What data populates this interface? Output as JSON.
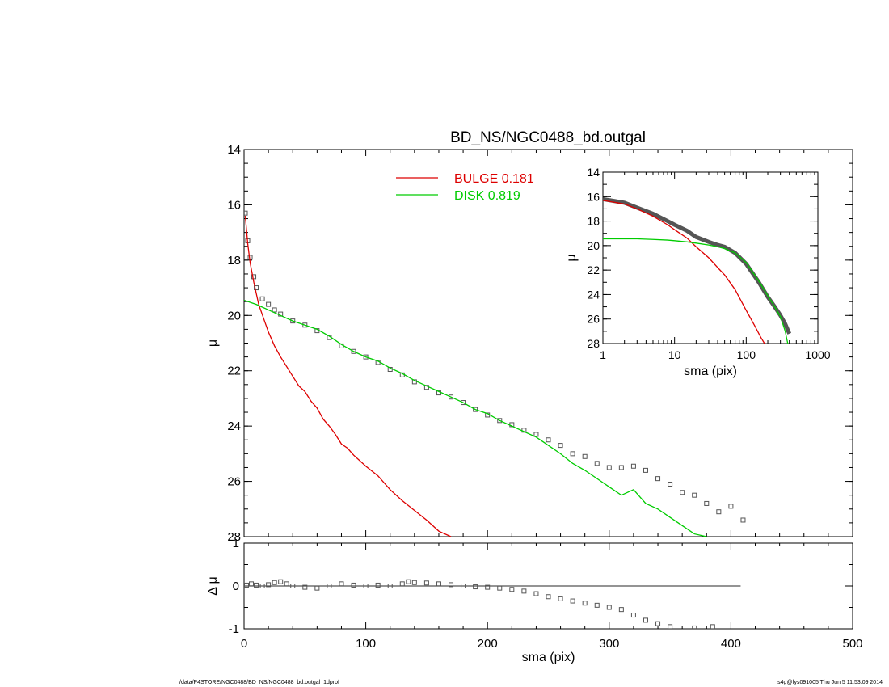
{
  "chart_data": [
    {
      "type": "scatter",
      "panel": "main-profile",
      "title": "BD_NS/NGC0488_bd.outgal",
      "xlabel": "",
      "ylabel": "μ",
      "xlim": [
        0,
        500
      ],
      "ylim": [
        28,
        14
      ],
      "x_ticks": [
        "0",
        "100",
        "200",
        "300",
        "400",
        "500"
      ],
      "y_ticks": [
        "14",
        "16",
        "18",
        "20",
        "22",
        "24",
        "26",
        "28"
      ],
      "legend": [
        {
          "name": "BULGE",
          "value": "0.181",
          "color": "#dd0000"
        },
        {
          "name": "DISK",
          "value": "0.819",
          "color": "#00cc00"
        }
      ],
      "legend_position": "top-center",
      "series": [
        {
          "name": "data",
          "style": "open-squares",
          "color": "#555555",
          "x": [
            1,
            3,
            5,
            8,
            10,
            15,
            20,
            25,
            30,
            40,
            50,
            60,
            70,
            80,
            90,
            100,
            110,
            120,
            130,
            140,
            150,
            160,
            170,
            180,
            190,
            200,
            210,
            220,
            230,
            240,
            250,
            260,
            270,
            280,
            290,
            300,
            310,
            320,
            330,
            340,
            350,
            360,
            370,
            380,
            390,
            400,
            410
          ],
          "y": [
            16.3,
            17.3,
            17.9,
            18.6,
            19.0,
            19.4,
            19.6,
            19.8,
            19.95,
            20.2,
            20.35,
            20.55,
            20.8,
            21.1,
            21.3,
            21.5,
            21.7,
            21.95,
            22.15,
            22.4,
            22.6,
            22.8,
            22.95,
            23.15,
            23.4,
            23.6,
            23.8,
            23.95,
            24.15,
            24.3,
            24.5,
            24.7,
            25.0,
            25.1,
            25.35,
            25.5,
            25.5,
            25.45,
            25.6,
            25.9,
            26.1,
            26.4,
            26.5,
            26.8,
            27.1,
            26.9,
            27.4
          ]
        },
        {
          "name": "BULGE",
          "style": "line",
          "color": "#dd0000",
          "x": [
            1,
            3,
            5,
            8,
            12,
            16,
            20,
            25,
            30,
            35,
            40,
            45,
            50,
            55,
            60,
            65,
            70,
            75,
            80,
            85,
            90,
            95,
            100,
            110,
            120,
            130,
            140,
            150,
            160,
            170
          ],
          "y": [
            16.4,
            17.4,
            18.1,
            18.8,
            19.6,
            20.1,
            20.6,
            21.1,
            21.5,
            21.85,
            22.2,
            22.55,
            22.75,
            23.1,
            23.35,
            23.75,
            24.0,
            24.3,
            24.65,
            24.8,
            25.05,
            25.25,
            25.45,
            25.8,
            26.3,
            26.7,
            27.05,
            27.4,
            27.8,
            28.0
          ]
        },
        {
          "name": "DISK",
          "style": "line",
          "color": "#00cc00",
          "x": [
            0,
            10,
            20,
            30,
            40,
            50,
            60,
            70,
            80,
            90,
            100,
            110,
            120,
            130,
            140,
            150,
            160,
            170,
            180,
            190,
            200,
            210,
            220,
            230,
            240,
            250,
            260,
            270,
            280,
            290,
            300,
            310,
            320,
            330,
            340,
            350,
            360,
            370,
            380
          ],
          "y": [
            19.45,
            19.6,
            19.8,
            20.0,
            20.2,
            20.35,
            20.5,
            20.75,
            21.05,
            21.3,
            21.5,
            21.65,
            21.9,
            22.1,
            22.35,
            22.55,
            22.75,
            22.95,
            23.15,
            23.4,
            23.55,
            23.8,
            24.0,
            24.2,
            24.4,
            24.7,
            25.0,
            25.35,
            25.6,
            25.9,
            26.2,
            26.5,
            26.3,
            26.8,
            27.0,
            27.3,
            27.6,
            27.9,
            28.0
          ]
        }
      ]
    },
    {
      "type": "scatter",
      "panel": "residual",
      "xlabel": "sma (pix)",
      "ylabel": "Δ μ",
      "xlim": [
        0,
        500
      ],
      "ylim": [
        -1,
        1
      ],
      "x_ticks": [
        "0",
        "100",
        "200",
        "300",
        "400",
        "500"
      ],
      "y_ticks": [
        "1",
        "0",
        "-1"
      ],
      "series": [
        {
          "name": "residual",
          "style": "open-squares",
          "color": "#555555",
          "x": [
            2,
            6,
            10,
            15,
            20,
            25,
            30,
            35,
            40,
            50,
            60,
            70,
            80,
            90,
            100,
            110,
            120,
            130,
            135,
            140,
            150,
            160,
            170,
            180,
            190,
            200,
            210,
            220,
            230,
            240,
            250,
            260,
            270,
            280,
            290,
            300,
            310,
            320,
            330,
            340,
            350,
            370,
            385
          ],
          "y": [
            0.02,
            0.05,
            0.02,
            0.0,
            0.03,
            0.08,
            0.1,
            0.05,
            0.0,
            -0.03,
            -0.05,
            0.0,
            0.05,
            0.02,
            0.0,
            0.02,
            0.0,
            0.05,
            0.1,
            0.08,
            0.07,
            0.05,
            0.03,
            0.0,
            -0.02,
            -0.03,
            -0.05,
            -0.08,
            -0.12,
            -0.18,
            -0.25,
            -0.3,
            -0.35,
            -0.4,
            -0.45,
            -0.5,
            -0.55,
            -0.68,
            -0.8,
            -0.88,
            -0.95,
            -0.98,
            -0.95
          ]
        },
        {
          "name": "zero-line",
          "style": "line",
          "color": "#555555",
          "x": [
            0,
            408
          ],
          "y": [
            0,
            0
          ]
        }
      ]
    },
    {
      "type": "line",
      "panel": "inset-log",
      "xlabel": "sma (pix)",
      "ylabel": "μ",
      "xscale": "log",
      "xlim": [
        1,
        1000
      ],
      "ylim": [
        28,
        14
      ],
      "x_ticks": [
        "1",
        "10",
        "100",
        "1000"
      ],
      "y_ticks": [
        "14",
        "16",
        "18",
        "20",
        "22",
        "24",
        "26",
        "28"
      ],
      "series": [
        {
          "name": "data",
          "style": "thick-gray",
          "color": "#555555",
          "x": [
            1,
            2,
            3,
            5,
            8,
            10,
            15,
            20,
            30,
            40,
            50,
            70,
            100,
            150,
            200,
            250,
            300,
            350,
            400
          ],
          "y": [
            16.2,
            16.5,
            16.9,
            17.4,
            18.0,
            18.3,
            18.8,
            19.3,
            19.7,
            19.95,
            20.1,
            20.6,
            21.5,
            23.0,
            24.2,
            25.0,
            25.7,
            26.4,
            27.2
          ]
        },
        {
          "name": "BULGE",
          "style": "line",
          "color": "#dd0000",
          "x": [
            1,
            2,
            3,
            5,
            8,
            10,
            15,
            20,
            30,
            40,
            50,
            70,
            100,
            130,
            160,
            180
          ],
          "y": [
            16.3,
            16.6,
            17.0,
            17.6,
            18.3,
            18.7,
            19.4,
            20.1,
            21.0,
            21.8,
            22.4,
            23.6,
            25.3,
            26.5,
            27.5,
            28.0
          ]
        },
        {
          "name": "DISK",
          "style": "line",
          "color": "#00cc00",
          "x": [
            1,
            2,
            3,
            5,
            8,
            10,
            15,
            20,
            30,
            40,
            50,
            70,
            100,
            150,
            200,
            250,
            300,
            350,
            380
          ],
          "y": [
            19.45,
            19.45,
            19.45,
            19.5,
            19.55,
            19.6,
            19.7,
            19.8,
            19.95,
            20.1,
            20.25,
            20.6,
            21.4,
            22.9,
            24.1,
            25.0,
            25.8,
            27.0,
            28.0
          ]
        }
      ]
    }
  ],
  "footer": {
    "left": "/data/P4STORE/NGC0488/BD_NS/NGC0488_bd.outgal_1dprof",
    "right": "s4g@fys091005  Thu Jun  5 11:53:09 2014"
  }
}
